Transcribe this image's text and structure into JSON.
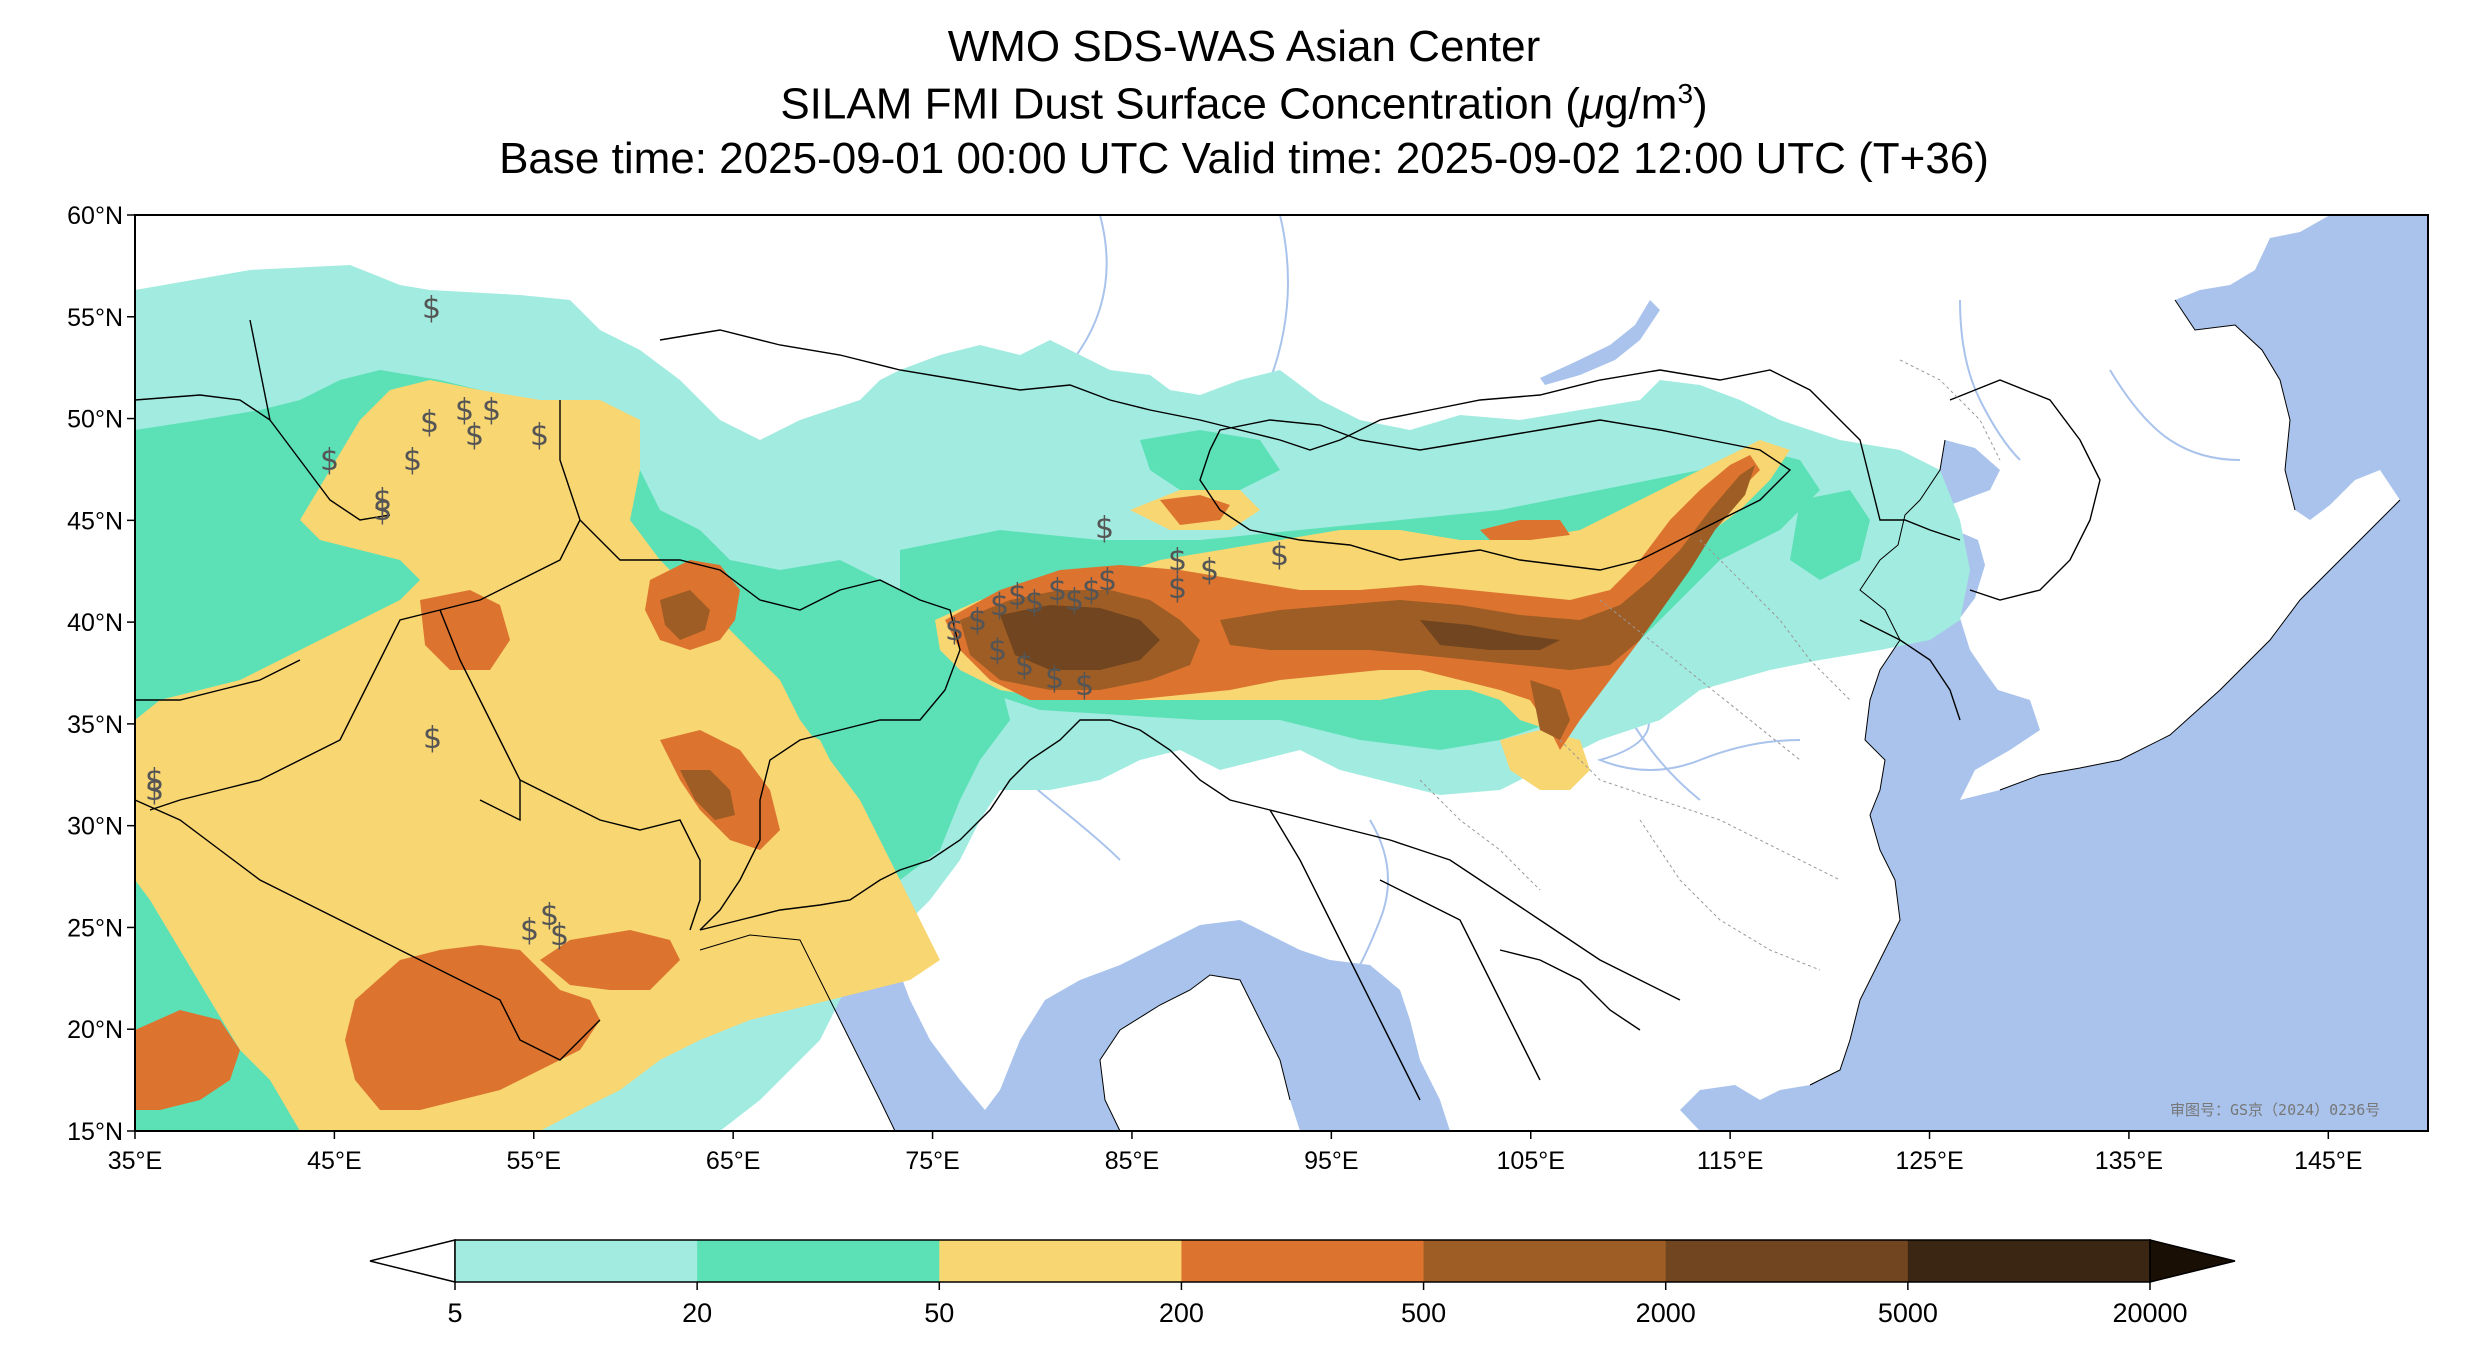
{
  "header": {
    "line1": "WMO SDS-WAS Asian Center",
    "line2_prefix": "SILAM FMI Dust Surface Concentration (",
    "line2_mu": "μ",
    "line2_unit": "g/m",
    "line2_exp": "3",
    "line2_suffix": ")",
    "line3": "Base time: 2025-09-01 00:00 UTC Valid time: 2025-09-02 12:00 UTC (T+36)"
  },
  "map": {
    "lon_range": [
      35,
      150
    ],
    "lat_range": [
      15,
      60
    ],
    "x_ticks": [
      "35°E",
      "45°E",
      "55°E",
      "65°E",
      "75°E",
      "85°E",
      "95°E",
      "105°E",
      "115°E",
      "125°E",
      "135°E",
      "145°E"
    ],
    "y_ticks": [
      "60°N",
      "55°N",
      "50°N",
      "45°N",
      "40°N",
      "35°N",
      "30°N",
      "25°N",
      "20°N",
      "15°N"
    ],
    "watermark": "审图号：GS京（2024）0236号",
    "colors": {
      "sea": "#a9c3ec",
      "land": "#ffffff",
      "river": "#a9c3ec",
      "border": "#000000"
    }
  },
  "colorbar": {
    "levels": [
      "5",
      "20",
      "50",
      "200",
      "500",
      "2000",
      "5000",
      "20000"
    ],
    "colors": [
      "#a2ebe0",
      "#5ce1b7",
      "#f8d672",
      "#dc732f",
      "#9e5d25",
      "#71451f",
      "#3b2613"
    ],
    "extend": "both",
    "under_color": "#ffffff",
    "over_color": "#1a0f05"
  },
  "dust_symbol": "$"
}
